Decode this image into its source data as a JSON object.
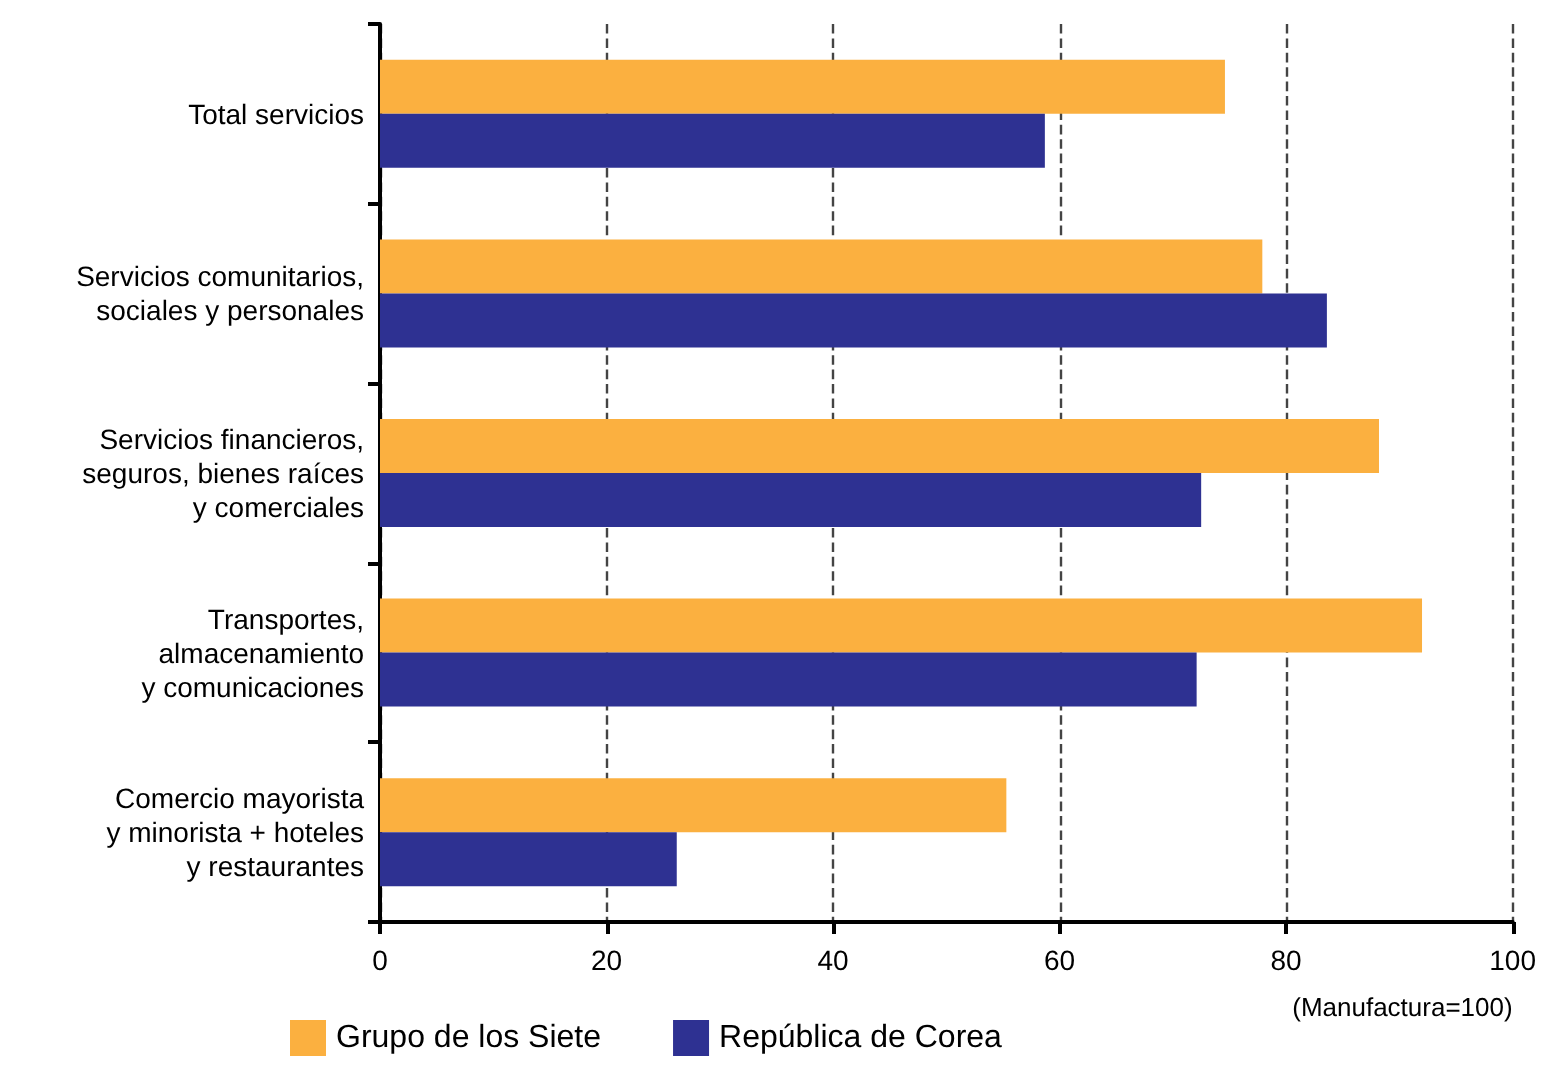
{
  "chart_data": {
    "type": "bar",
    "orientation": "horizontal",
    "xlabel": "(Manufactura=100)",
    "categories": [
      "Total servicios",
      "Servicios comunitarios,\nsociales y personales",
      "Servicios financieros,\nseguros, bienes raíces\ny comerciales",
      "Transportes,\nalmacenamiento\ny comunicaciones",
      "Comercio mayorista\ny minorista + hoteles\ny restaurantes"
    ],
    "series": [
      {
        "name": "Grupo de los Siete",
        "color": "#fbb040",
        "values": [
          74.6,
          77.9,
          88.2,
          92.0,
          55.3
        ]
      },
      {
        "name": "República de Corea",
        "color": "#2e3192",
        "values": [
          58.7,
          83.6,
          72.5,
          72.1,
          26.2
        ]
      }
    ],
    "xlim": [
      0,
      100
    ],
    "xticks": [
      0,
      20,
      40,
      60,
      80,
      100
    ],
    "grid": "x",
    "line_style": "dashed",
    "legend": "bottom"
  }
}
